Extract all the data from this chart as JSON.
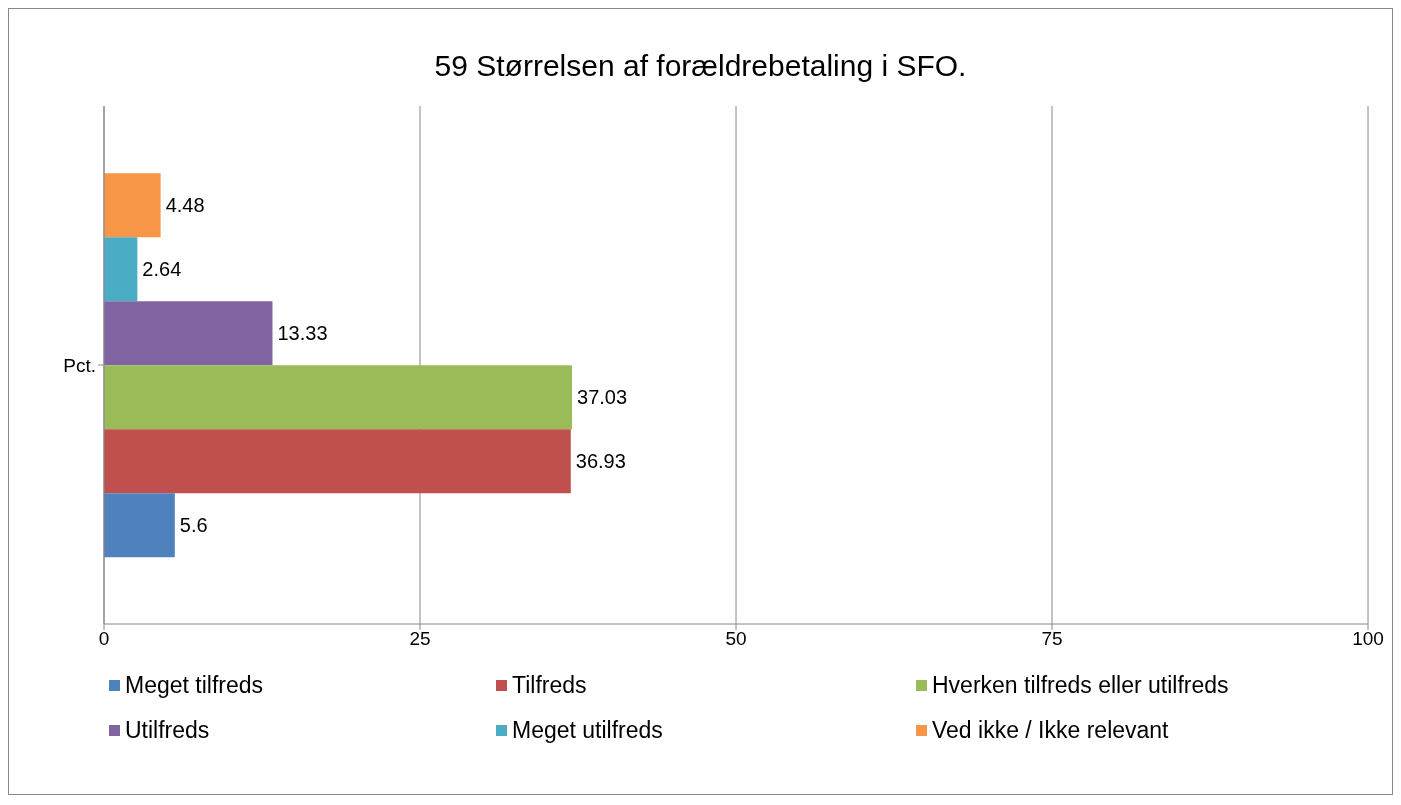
{
  "chart_data": {
    "type": "bar",
    "orientation": "horizontal",
    "title": "59 Størrelsen af forældrebetaling i SFO.",
    "categories": [
      "Pct."
    ],
    "series": [
      {
        "name": "Meget tilfreds",
        "color": "#4f81bd",
        "values": [
          5.6
        ]
      },
      {
        "name": "Tilfreds",
        "color": "#c0504d",
        "values": [
          36.93
        ]
      },
      {
        "name": "Hverken tilfreds eller utilfreds",
        "color": "#9bbb59",
        "values": [
          37.03
        ]
      },
      {
        "name": "Utilfreds",
        "color": "#8064a2",
        "values": [
          13.33
        ]
      },
      {
        "name": "Meget utilfreds",
        "color": "#4bacc6",
        "values": [
          2.64
        ]
      },
      {
        "name": "Ved ikke / Ikke relevant",
        "color": "#f79646",
        "values": [
          4.48
        ]
      }
    ],
    "xlim": [
      0,
      100
    ],
    "xticks": [
      0,
      25,
      50,
      75,
      100
    ],
    "grid": "x",
    "legend": "bottom",
    "data_labels": true
  }
}
